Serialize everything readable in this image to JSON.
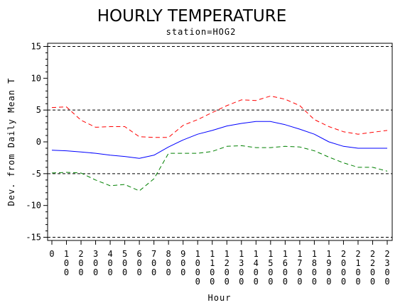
{
  "chart_data": {
    "type": "line",
    "title": "HOURLY TEMPERATURE",
    "subtitle": "station=HOG2",
    "xlabel": "Hour",
    "ylabel": "Dev. from Daily Mean T",
    "x": [
      "0",
      "100",
      "200",
      "300",
      "400",
      "500",
      "600",
      "700",
      "800",
      "900",
      "1000",
      "1100",
      "1200",
      "1300",
      "1400",
      "1500",
      "1600",
      "1700",
      "1800",
      "1900",
      "2000",
      "2100",
      "2200",
      "2300"
    ],
    "yticks": [
      15,
      10,
      5,
      0,
      -5,
      -10,
      -15
    ],
    "ylim": [
      -15.5,
      15.5
    ],
    "reference_lines": [
      15,
      5,
      -5,
      -15
    ],
    "series": [
      {
        "role": "mean",
        "color": "#0000ff",
        "style": "solid",
        "values": [
          -1.3,
          -1.4,
          -1.6,
          -1.8,
          -2.1,
          -2.3,
          -2.6,
          -2.1,
          -0.8,
          0.3,
          1.2,
          1.8,
          2.5,
          2.9,
          3.2,
          3.2,
          2.7,
          2.0,
          1.2,
          0.0,
          -0.7,
          -1.0,
          -1.0,
          -1.0
        ]
      },
      {
        "role": "upper",
        "color": "#ff0000",
        "style": "dashed",
        "values": [
          5.4,
          5.5,
          3.4,
          2.3,
          2.4,
          2.4,
          0.8,
          0.7,
          0.7,
          2.6,
          3.5,
          4.6,
          5.7,
          6.6,
          6.5,
          7.2,
          6.7,
          5.7,
          3.5,
          2.4,
          1.6,
          1.2,
          1.5,
          1.8
        ]
      },
      {
        "role": "lower",
        "color": "#008000",
        "style": "dashed",
        "values": [
          -4.9,
          -4.8,
          -4.9,
          -6.0,
          -6.9,
          -6.7,
          -7.7,
          -5.8,
          -1.8,
          -1.8,
          -1.8,
          -1.5,
          -0.7,
          -0.6,
          -0.9,
          -0.9,
          -0.7,
          -0.8,
          -1.4,
          -2.4,
          -3.3,
          -4.0,
          -4.0,
          -4.6
        ]
      }
    ]
  }
}
